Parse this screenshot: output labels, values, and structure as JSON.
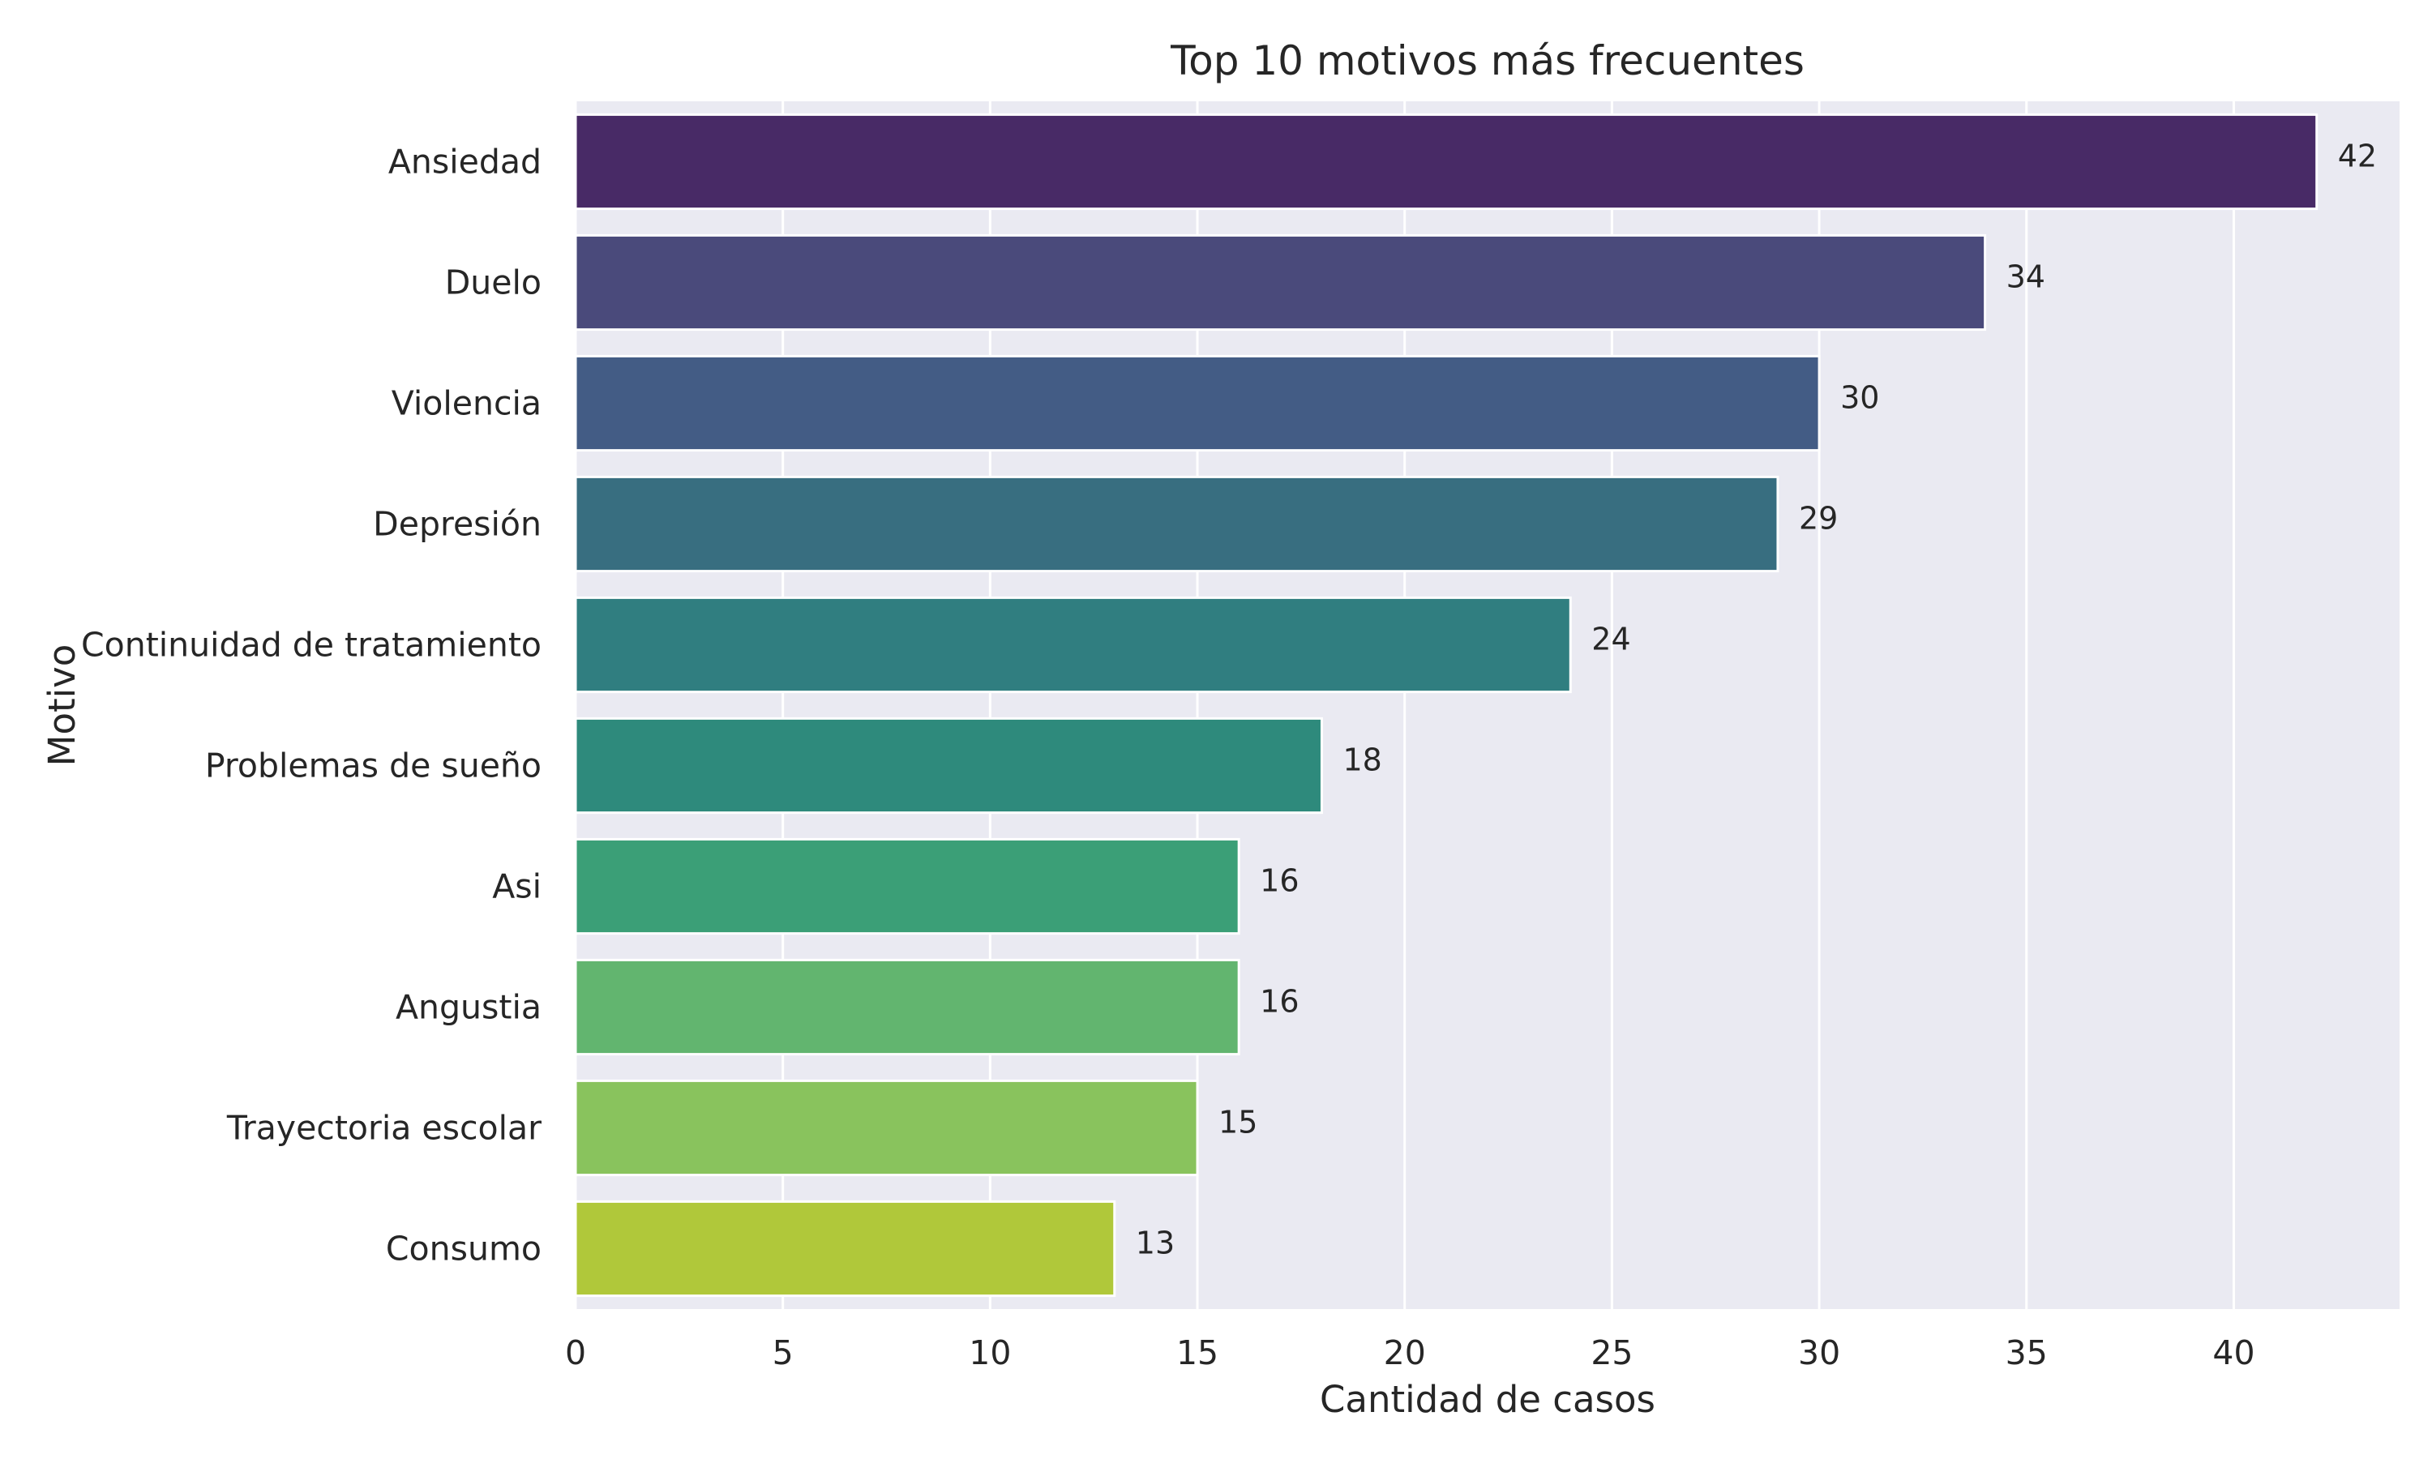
{
  "chart_data": {
    "type": "bar",
    "orientation": "horizontal",
    "title": "Top 10 motivos más frecuentes",
    "xlabel": "Cantidad de casos",
    "ylabel": "Motivo",
    "categories": [
      "Ansiedad",
      "Duelo",
      "Violencia",
      "Depresión",
      "Continuidad de tratamiento",
      "Problemas de sueño",
      "Asi",
      "Angustia",
      "Trayectoria escolar",
      "Consumo"
    ],
    "values": [
      42,
      34,
      30,
      29,
      24,
      18,
      16,
      16,
      15,
      13
    ],
    "data_labels": [
      "42",
      "34",
      "30",
      "29",
      "24",
      "18",
      "16",
      "16",
      "15",
      "13"
    ],
    "colors": [
      "#482a66",
      "#4a4a7b",
      "#435c85",
      "#386e80",
      "#307e80",
      "#2e8a7c",
      "#3b9f77",
      "#62b56f",
      "#89c35d",
      "#b0c83a"
    ],
    "xlim": [
      0,
      44
    ],
    "xticks": [
      0,
      5,
      10,
      15,
      20,
      25,
      30,
      35,
      40
    ],
    "xtick_labels": [
      "0",
      "5",
      "10",
      "15",
      "20",
      "25",
      "30",
      "35",
      "40"
    ],
    "grid": true,
    "plot_background": "#eaeaf2",
    "grid_color": "#ffffff"
  }
}
